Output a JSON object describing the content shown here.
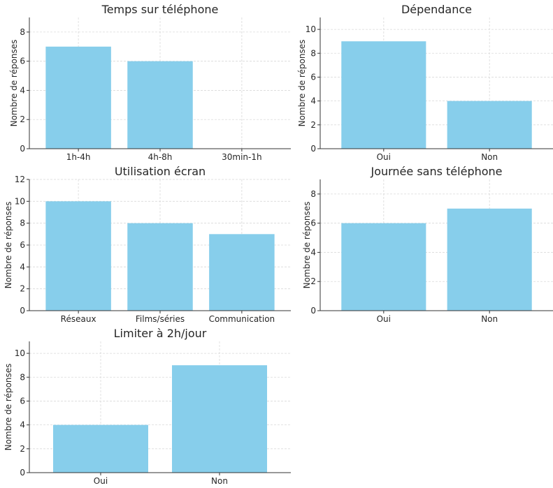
{
  "chart_data": [
    {
      "type": "bar",
      "title": "Temps sur téléphone",
      "ylabel": "Nombre de réponses",
      "categories": [
        "1h-4h",
        "4h-8h",
        "30min-1h"
      ],
      "values": [
        7,
        6,
        0
      ],
      "ylim": [
        0,
        9
      ],
      "yticks": [
        0,
        2,
        4,
        6,
        8
      ],
      "grid": true,
      "color": "#87CEEB"
    },
    {
      "type": "bar",
      "title": "Dépendance",
      "ylabel": "Nombre de réponses",
      "categories": [
        "Oui",
        "Non"
      ],
      "values": [
        9,
        4
      ],
      "ylim": [
        0,
        11
      ],
      "yticks": [
        0,
        2,
        4,
        6,
        8,
        10
      ],
      "grid": true,
      "color": "#87CEEB"
    },
    {
      "type": "bar",
      "title": "Utilisation écran",
      "ylabel": "Nombre de réponses",
      "categories": [
        "Réseaux",
        "Films/séries",
        "Communication"
      ],
      "values": [
        10,
        8,
        7
      ],
      "ylim": [
        0,
        12
      ],
      "yticks": [
        0,
        2,
        4,
        6,
        8,
        10,
        12
      ],
      "grid": true,
      "color": "#87CEEB"
    },
    {
      "type": "bar",
      "title": "Journée sans téléphone",
      "ylabel": "Nombre de réponses",
      "categories": [
        "Oui",
        "Non"
      ],
      "values": [
        6,
        7
      ],
      "ylim": [
        0,
        9
      ],
      "yticks": [
        0,
        2,
        4,
        6,
        8
      ],
      "grid": true,
      "color": "#87CEEB"
    },
    {
      "type": "bar",
      "title": "Limiter à 2h/jour",
      "ylabel": "Nombre de réponses",
      "categories": [
        "Oui",
        "Non"
      ],
      "values": [
        4,
        9
      ],
      "ylim": [
        0,
        11
      ],
      "yticks": [
        0,
        2,
        4,
        6,
        8,
        10
      ],
      "grid": true,
      "color": "#87CEEB"
    }
  ]
}
